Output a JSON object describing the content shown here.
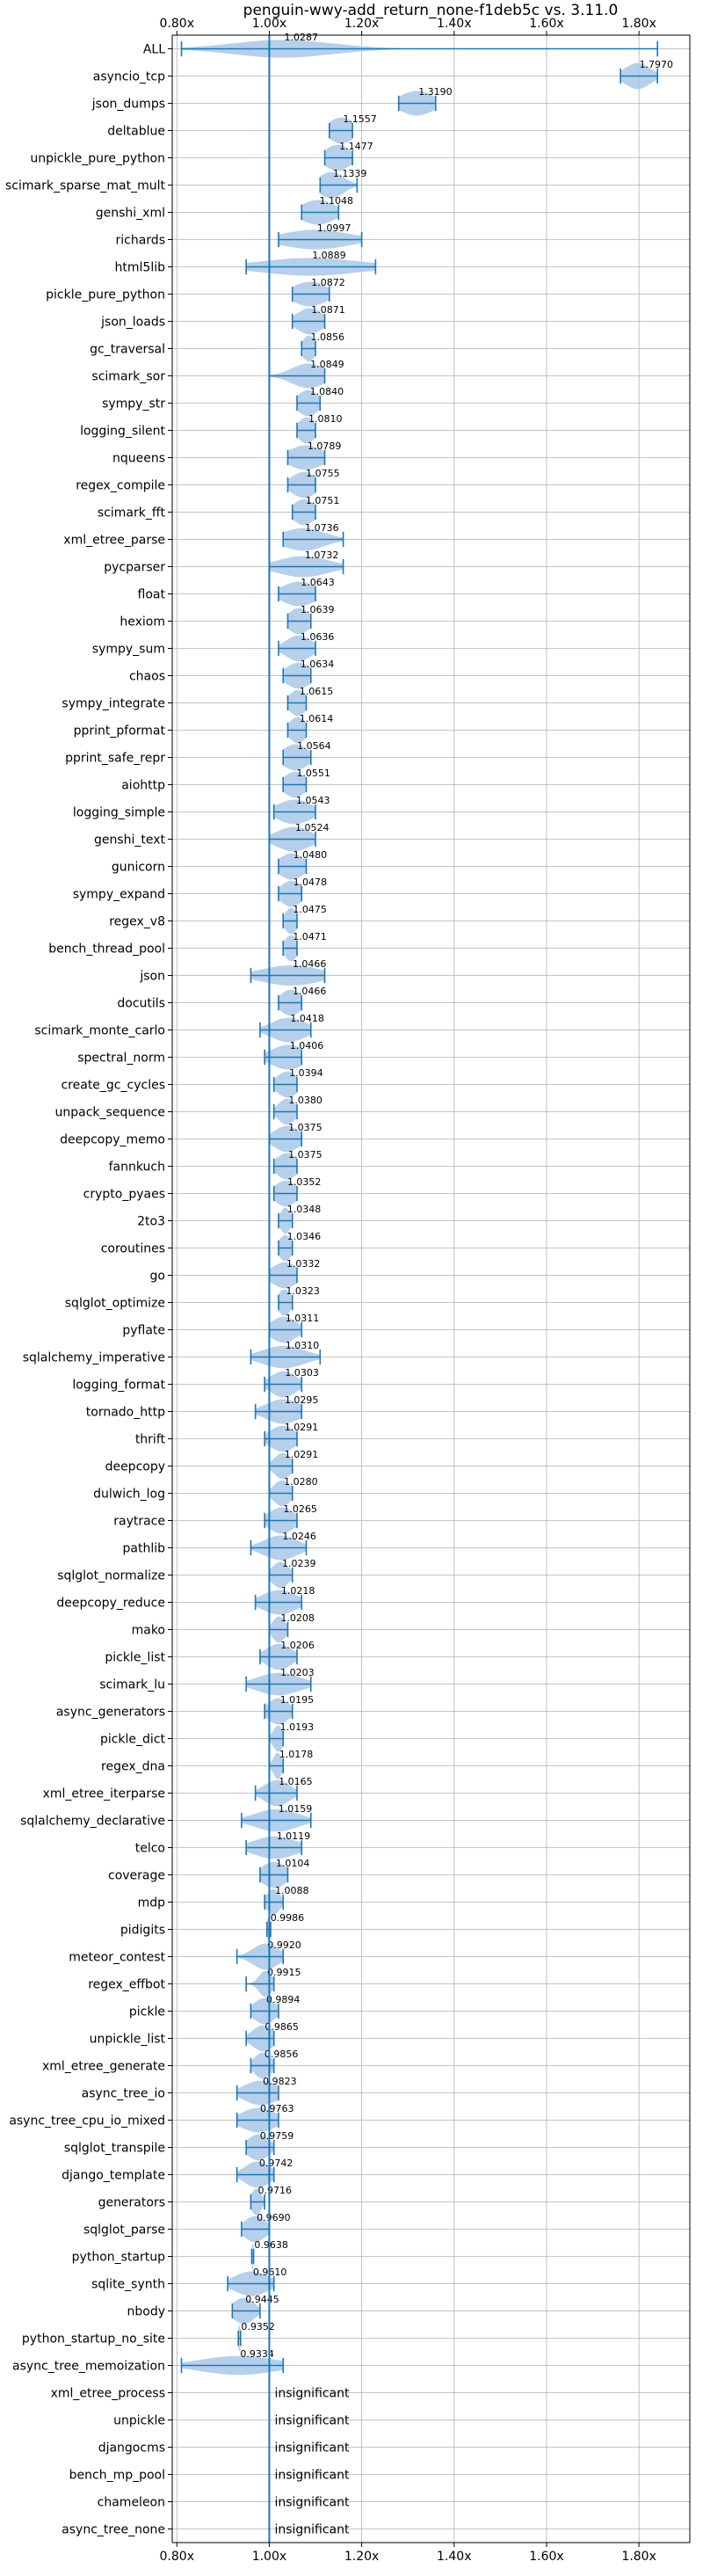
{
  "chart_data": {
    "type": "violin",
    "title": "penguin-wwy-add_return_none-f1deb5c vs. 3.11.0",
    "xlim": [
      0.79,
      1.91
    ],
    "xticks": [
      0.8,
      1.0,
      1.2,
      1.4,
      1.6,
      1.8
    ],
    "xtick_labels": [
      "0.80x",
      "1.00x",
      "1.20x",
      "1.40x",
      "1.60x",
      "1.80x"
    ],
    "reference_x": 1.0,
    "grid": true,
    "colors": {
      "violin": "#a9c8e8",
      "line": "#1f77b4",
      "grid": "#b0b0b0"
    },
    "insignificant_label": "insignificant",
    "benchmarks": [
      {
        "name": "ALL",
        "mean": 1.0287,
        "min": 0.81,
        "max": 1.84,
        "spread": 0.12
      },
      {
        "name": "asyncio_tcp",
        "mean": 1.797,
        "min": 1.76,
        "max": 1.84,
        "spread": 0.03
      },
      {
        "name": "json_dumps",
        "mean": 1.319,
        "min": 1.28,
        "max": 1.36,
        "spread": 0.04
      },
      {
        "name": "deltablue",
        "mean": 1.1557,
        "min": 1.13,
        "max": 1.18,
        "spread": 0.03
      },
      {
        "name": "unpickle_pure_python",
        "mean": 1.1477,
        "min": 1.12,
        "max": 1.18,
        "spread": 0.03
      },
      {
        "name": "scimark_sparse_mat_mult",
        "mean": 1.1339,
        "min": 1.11,
        "max": 1.19,
        "spread": 0.03
      },
      {
        "name": "genshi_xml",
        "mean": 1.1048,
        "min": 1.07,
        "max": 1.15,
        "spread": 0.04
      },
      {
        "name": "richards",
        "mean": 1.0997,
        "min": 1.02,
        "max": 1.2,
        "spread": 0.08
      },
      {
        "name": "html5lib",
        "mean": 1.0889,
        "min": 0.95,
        "max": 1.23,
        "spread": 0.12
      },
      {
        "name": "pickle_pure_python",
        "mean": 1.0872,
        "min": 1.05,
        "max": 1.13,
        "spread": 0.04
      },
      {
        "name": "json_loads",
        "mean": 1.0871,
        "min": 1.05,
        "max": 1.12,
        "spread": 0.03
      },
      {
        "name": "gc_traversal",
        "mean": 1.0856,
        "min": 1.07,
        "max": 1.1,
        "spread": 0.015
      },
      {
        "name": "scimark_sor",
        "mean": 1.0849,
        "min": 1.0,
        "max": 1.12,
        "spread": 0.04
      },
      {
        "name": "sympy_str",
        "mean": 1.084,
        "min": 1.06,
        "max": 1.11,
        "spread": 0.025
      },
      {
        "name": "logging_silent",
        "mean": 1.081,
        "min": 1.06,
        "max": 1.1,
        "spread": 0.02
      },
      {
        "name": "nqueens",
        "mean": 1.0789,
        "min": 1.04,
        "max": 1.12,
        "spread": 0.04
      },
      {
        "name": "regex_compile",
        "mean": 1.0755,
        "min": 1.04,
        "max": 1.1,
        "spread": 0.03
      },
      {
        "name": "scimark_fft",
        "mean": 1.0751,
        "min": 1.05,
        "max": 1.1,
        "spread": 0.025
      },
      {
        "name": "xml_etree_parse",
        "mean": 1.0736,
        "min": 1.03,
        "max": 1.16,
        "spread": 0.05
      },
      {
        "name": "pycparser",
        "mean": 1.0732,
        "min": 1.0,
        "max": 1.16,
        "spread": 0.06
      },
      {
        "name": "float",
        "mean": 1.0643,
        "min": 1.02,
        "max": 1.1,
        "spread": 0.04
      },
      {
        "name": "hexiom",
        "mean": 1.0639,
        "min": 1.04,
        "max": 1.09,
        "spread": 0.025
      },
      {
        "name": "sympy_sum",
        "mean": 1.0636,
        "min": 1.02,
        "max": 1.1,
        "spread": 0.03
      },
      {
        "name": "chaos",
        "mean": 1.0634,
        "min": 1.03,
        "max": 1.09,
        "spread": 0.03
      },
      {
        "name": "sympy_integrate",
        "mean": 1.0615,
        "min": 1.04,
        "max": 1.08,
        "spread": 0.02
      },
      {
        "name": "pprint_pformat",
        "mean": 1.0614,
        "min": 1.04,
        "max": 1.08,
        "spread": 0.02
      },
      {
        "name": "pprint_safe_repr",
        "mean": 1.0564,
        "min": 1.03,
        "max": 1.09,
        "spread": 0.03
      },
      {
        "name": "aiohttp",
        "mean": 1.0551,
        "min": 1.03,
        "max": 1.08,
        "spread": 0.025
      },
      {
        "name": "logging_simple",
        "mean": 1.0543,
        "min": 1.01,
        "max": 1.1,
        "spread": 0.04
      },
      {
        "name": "genshi_text",
        "mean": 1.0524,
        "min": 1.0,
        "max": 1.1,
        "spread": 0.04
      },
      {
        "name": "gunicorn",
        "mean": 1.048,
        "min": 1.02,
        "max": 1.08,
        "spread": 0.03
      },
      {
        "name": "sympy_expand",
        "mean": 1.0478,
        "min": 1.02,
        "max": 1.07,
        "spread": 0.025
      },
      {
        "name": "regex_v8",
        "mean": 1.0475,
        "min": 1.03,
        "max": 1.06,
        "spread": 0.015
      },
      {
        "name": "bench_thread_pool",
        "mean": 1.0471,
        "min": 1.03,
        "max": 1.06,
        "spread": 0.015
      },
      {
        "name": "json",
        "mean": 1.0466,
        "min": 0.96,
        "max": 1.12,
        "spread": 0.07
      },
      {
        "name": "docutils",
        "mean": 1.0466,
        "min": 1.02,
        "max": 1.07,
        "spread": 0.025
      },
      {
        "name": "scimark_monte_carlo",
        "mean": 1.0418,
        "min": 0.98,
        "max": 1.09,
        "spread": 0.04
      },
      {
        "name": "spectral_norm",
        "mean": 1.0406,
        "min": 0.99,
        "max": 1.07,
        "spread": 0.04
      },
      {
        "name": "create_gc_cycles",
        "mean": 1.0394,
        "min": 1.01,
        "max": 1.06,
        "spread": 0.025
      },
      {
        "name": "unpack_sequence",
        "mean": 1.038,
        "min": 1.01,
        "max": 1.06,
        "spread": 0.02
      },
      {
        "name": "deepcopy_memo",
        "mean": 1.0375,
        "min": 1.0,
        "max": 1.07,
        "spread": 0.03
      },
      {
        "name": "fannkuch",
        "mean": 1.0375,
        "min": 1.01,
        "max": 1.06,
        "spread": 0.025
      },
      {
        "name": "crypto_pyaes",
        "mean": 1.0352,
        "min": 1.01,
        "max": 1.06,
        "spread": 0.025
      },
      {
        "name": "2to3",
        "mean": 1.0348,
        "min": 1.02,
        "max": 1.05,
        "spread": 0.012
      },
      {
        "name": "coroutines",
        "mean": 1.0346,
        "min": 1.02,
        "max": 1.05,
        "spread": 0.015
      },
      {
        "name": "go",
        "mean": 1.0332,
        "min": 1.0,
        "max": 1.06,
        "spread": 0.03
      },
      {
        "name": "sqlglot_optimize",
        "mean": 1.0323,
        "min": 1.02,
        "max": 1.05,
        "spread": 0.015
      },
      {
        "name": "pyflate",
        "mean": 1.0311,
        "min": 1.0,
        "max": 1.07,
        "spread": 0.03
      },
      {
        "name": "sqlalchemy_imperative",
        "mean": 1.031,
        "min": 0.96,
        "max": 1.11,
        "spread": 0.05
      },
      {
        "name": "logging_format",
        "mean": 1.0303,
        "min": 0.99,
        "max": 1.07,
        "spread": 0.03
      },
      {
        "name": "tornado_http",
        "mean": 1.0295,
        "min": 0.97,
        "max": 1.07,
        "spread": 0.04
      },
      {
        "name": "thrift",
        "mean": 1.0291,
        "min": 0.99,
        "max": 1.06,
        "spread": 0.03
      },
      {
        "name": "deepcopy",
        "mean": 1.0291,
        "min": 1.0,
        "max": 1.05,
        "spread": 0.02
      },
      {
        "name": "dulwich_log",
        "mean": 1.028,
        "min": 1.0,
        "max": 1.05,
        "spread": 0.02
      },
      {
        "name": "raytrace",
        "mean": 1.0265,
        "min": 0.99,
        "max": 1.06,
        "spread": 0.03
      },
      {
        "name": "pathlib",
        "mean": 1.0246,
        "min": 0.96,
        "max": 1.08,
        "spread": 0.04
      },
      {
        "name": "sqlglot_normalize",
        "mean": 1.0239,
        "min": 1.0,
        "max": 1.05,
        "spread": 0.02
      },
      {
        "name": "deepcopy_reduce",
        "mean": 1.0218,
        "min": 0.97,
        "max": 1.07,
        "spread": 0.04
      },
      {
        "name": "mako",
        "mean": 1.0208,
        "min": 1.0,
        "max": 1.04,
        "spread": 0.015
      },
      {
        "name": "pickle_list",
        "mean": 1.0206,
        "min": 0.98,
        "max": 1.06,
        "spread": 0.03
      },
      {
        "name": "scimark_lu",
        "mean": 1.0203,
        "min": 0.95,
        "max": 1.09,
        "spread": 0.05
      },
      {
        "name": "async_generators",
        "mean": 1.0195,
        "min": 0.99,
        "max": 1.05,
        "spread": 0.025
      },
      {
        "name": "pickle_dict",
        "mean": 1.0193,
        "min": 1.0,
        "max": 1.03,
        "spread": 0.012
      },
      {
        "name": "regex_dna",
        "mean": 1.0178,
        "min": 1.0,
        "max": 1.03,
        "spread": 0.01
      },
      {
        "name": "xml_etree_iterparse",
        "mean": 1.0165,
        "min": 0.97,
        "max": 1.06,
        "spread": 0.03
      },
      {
        "name": "sqlalchemy_declarative",
        "mean": 1.0159,
        "min": 0.94,
        "max": 1.09,
        "spread": 0.05
      },
      {
        "name": "telco",
        "mean": 1.0119,
        "min": 0.95,
        "max": 1.07,
        "spread": 0.05
      },
      {
        "name": "coverage",
        "mean": 1.0104,
        "min": 0.98,
        "max": 1.04,
        "spread": 0.03
      },
      {
        "name": "mdp",
        "mean": 1.0088,
        "min": 0.99,
        "max": 1.03,
        "spread": 0.015
      },
      {
        "name": "pidigits",
        "mean": 0.9986,
        "min": 0.995,
        "max": 1.003,
        "spread": 0.004
      },
      {
        "name": "meteor_contest",
        "mean": 0.992,
        "min": 0.93,
        "max": 1.03,
        "spread": 0.03
      },
      {
        "name": "regex_effbot",
        "mean": 0.9915,
        "min": 0.95,
        "max": 1.01,
        "spread": 0.015
      },
      {
        "name": "pickle",
        "mean": 0.9894,
        "min": 0.96,
        "max": 1.02,
        "spread": 0.025
      },
      {
        "name": "unpickle_list",
        "mean": 0.9865,
        "min": 0.95,
        "max": 1.01,
        "spread": 0.025
      },
      {
        "name": "xml_etree_generate",
        "mean": 0.9856,
        "min": 0.96,
        "max": 1.01,
        "spread": 0.02
      },
      {
        "name": "async_tree_io",
        "mean": 0.9823,
        "min": 0.93,
        "max": 1.02,
        "spread": 0.04
      },
      {
        "name": "async_tree_cpu_io_mixed",
        "mean": 0.9763,
        "min": 0.93,
        "max": 1.02,
        "spread": 0.04
      },
      {
        "name": "sqlglot_transpile",
        "mean": 0.9759,
        "min": 0.95,
        "max": 1.01,
        "spread": 0.025
      },
      {
        "name": "django_template",
        "mean": 0.9742,
        "min": 0.93,
        "max": 1.01,
        "spread": 0.03
      },
      {
        "name": "generators",
        "mean": 0.9716,
        "min": 0.96,
        "max": 0.99,
        "spread": 0.012
      },
      {
        "name": "sqlglot_parse",
        "mean": 0.969,
        "min": 0.94,
        "max": 1.0,
        "spread": 0.025
      },
      {
        "name": "python_startup",
        "mean": 0.9638,
        "min": 0.962,
        "max": 0.966,
        "spread": 0.003
      },
      {
        "name": "sqlite_synth",
        "mean": 0.961,
        "min": 0.91,
        "max": 1.01,
        "spread": 0.04
      },
      {
        "name": "nbody",
        "mean": 0.9445,
        "min": 0.92,
        "max": 0.98,
        "spread": 0.025
      },
      {
        "name": "python_startup_no_site",
        "mean": 0.9352,
        "min": 0.933,
        "max": 0.938,
        "spread": 0.003
      },
      {
        "name": "async_tree_memoization",
        "mean": 0.9334,
        "min": 0.81,
        "max": 1.03,
        "spread": 0.09
      },
      {
        "name": "xml_etree_process",
        "insignificant": true
      },
      {
        "name": "unpickle",
        "insignificant": true
      },
      {
        "name": "djangocms",
        "insignificant": true
      },
      {
        "name": "bench_mp_pool",
        "insignificant": true
      },
      {
        "name": "chameleon",
        "insignificant": true
      },
      {
        "name": "async_tree_none",
        "insignificant": true
      }
    ]
  }
}
